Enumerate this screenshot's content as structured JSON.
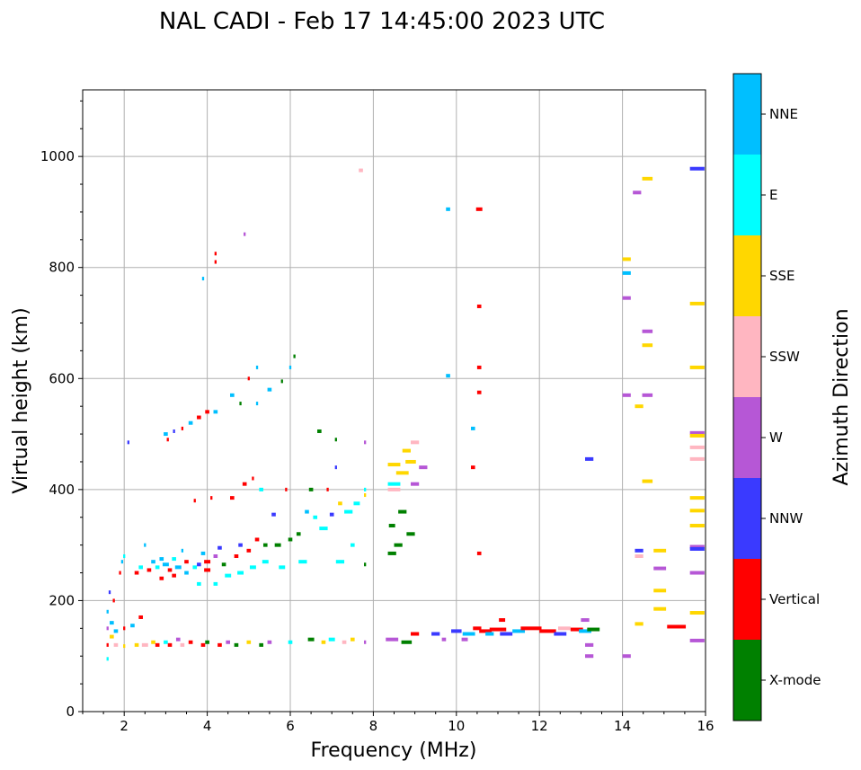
{
  "chart_data": {
    "type": "scatter",
    "title": "NAL CADI - Feb 17 14:45:00 2023 UTC",
    "xlabel": "Frequency (MHz)",
    "ylabel": "Virtual height (km)",
    "xlim": [
      1,
      16
    ],
    "ylim": [
      0,
      1120
    ],
    "xticks": [
      2,
      4,
      6,
      8,
      10,
      12,
      14,
      16
    ],
    "yticks": [
      0,
      200,
      400,
      600,
      800,
      1000
    ],
    "grid": true,
    "colorbar": {
      "label": "Azimuth Direction",
      "categories": [
        "X-mode",
        "Vertical",
        "NNW",
        "W",
        "SSW",
        "SSE",
        "E",
        "NNE"
      ],
      "colors": [
        "#008000",
        "#ff0000",
        "#3a3aff",
        "#b657d6",
        "#ffb6c1",
        "#ffd700",
        "#00ffff",
        "#00bfff"
      ]
    },
    "points_format": "[frequency_MHz, height_km, category_index, width_MHz]",
    "points": [
      [
        1.6,
        95,
        6,
        0.05
      ],
      [
        1.6,
        120,
        1,
        0.05
      ],
      [
        1.6,
        150,
        3,
        0.05
      ],
      [
        1.6,
        180,
        7,
        0.05
      ],
      [
        1.65,
        215,
        2,
        0.05
      ],
      [
        1.7,
        135,
        5,
        0.1
      ],
      [
        1.7,
        160,
        7,
        0.1
      ],
      [
        1.75,
        200,
        1,
        0.05
      ],
      [
        1.8,
        120,
        4,
        0.1
      ],
      [
        1.8,
        145,
        7,
        0.1
      ],
      [
        1.9,
        250,
        1,
        0.05
      ],
      [
        1.95,
        270,
        7,
        0.05
      ],
      [
        2.0,
        118,
        5,
        0.05
      ],
      [
        2.0,
        150,
        1,
        0.05
      ],
      [
        2.0,
        280,
        6,
        0.05
      ],
      [
        2.1,
        485,
        2,
        0.05
      ],
      [
        2.2,
        155,
        7,
        0.1
      ],
      [
        2.3,
        120,
        5,
        0.1
      ],
      [
        2.3,
        250,
        1,
        0.1
      ],
      [
        2.4,
        170,
        1,
        0.1
      ],
      [
        2.4,
        260,
        6,
        0.1
      ],
      [
        2.5,
        120,
        4,
        0.15
      ],
      [
        2.5,
        300,
        7,
        0.05
      ],
      [
        2.6,
        255,
        1,
        0.1
      ],
      [
        2.7,
        125,
        5,
        0.1
      ],
      [
        2.7,
        270,
        7,
        0.1
      ],
      [
        2.8,
        120,
        1,
        0.1
      ],
      [
        2.8,
        260,
        6,
        0.1
      ],
      [
        2.9,
        240,
        1,
        0.1
      ],
      [
        2.9,
        275,
        7,
        0.1
      ],
      [
        3.0,
        125,
        6,
        0.1
      ],
      [
        3.0,
        265,
        7,
        0.15
      ],
      [
        3.0,
        500,
        7,
        0.1
      ],
      [
        3.05,
        490,
        1,
        0.05
      ],
      [
        3.1,
        255,
        1,
        0.1
      ],
      [
        3.1,
        120,
        1,
        0.1
      ],
      [
        3.2,
        275,
        6,
        0.1
      ],
      [
        3.2,
        245,
        1,
        0.1
      ],
      [
        3.2,
        505,
        2,
        0.05
      ],
      [
        3.3,
        130,
        3,
        0.1
      ],
      [
        3.3,
        260,
        7,
        0.15
      ],
      [
        3.4,
        120,
        4,
        0.1
      ],
      [
        3.4,
        290,
        7,
        0.05
      ],
      [
        3.4,
        510,
        1,
        0.05
      ],
      [
        3.5,
        270,
        1,
        0.1
      ],
      [
        3.5,
        250,
        7,
        0.1
      ],
      [
        3.6,
        125,
        1,
        0.1
      ],
      [
        3.6,
        520,
        7,
        0.1
      ],
      [
        3.7,
        260,
        6,
        0.1
      ],
      [
        3.7,
        380,
        1,
        0.05
      ],
      [
        3.8,
        265,
        2,
        0.1
      ],
      [
        3.8,
        230,
        6,
        0.1
      ],
      [
        3.8,
        530,
        1,
        0.1
      ],
      [
        3.9,
        120,
        1,
        0.1
      ],
      [
        3.9,
        285,
        7,
        0.1
      ],
      [
        3.9,
        780,
        7,
        0.05
      ],
      [
        4.0,
        270,
        1,
        0.15
      ],
      [
        4.0,
        255,
        1,
        0.15
      ],
      [
        4.0,
        540,
        1,
        0.1
      ],
      [
        4.0,
        125,
        0,
        0.1
      ],
      [
        4.1,
        385,
        1,
        0.05
      ],
      [
        4.2,
        280,
        3,
        0.1
      ],
      [
        4.2,
        230,
        6,
        0.1
      ],
      [
        4.2,
        540,
        7,
        0.1
      ],
      [
        4.2,
        810,
        1,
        0.05
      ],
      [
        4.2,
        825,
        1,
        0.05
      ],
      [
        4.3,
        120,
        1,
        0.1
      ],
      [
        4.3,
        295,
        2,
        0.1
      ],
      [
        4.4,
        265,
        0,
        0.1
      ],
      [
        4.5,
        125,
        3,
        0.1
      ],
      [
        4.5,
        245,
        6,
        0.15
      ],
      [
        4.6,
        385,
        1,
        0.1
      ],
      [
        4.6,
        570,
        7,
        0.1
      ],
      [
        4.7,
        280,
        1,
        0.1
      ],
      [
        4.7,
        120,
        0,
        0.1
      ],
      [
        4.8,
        300,
        2,
        0.1
      ],
      [
        4.8,
        250,
        6,
        0.15
      ],
      [
        4.8,
        555,
        0,
        0.05
      ],
      [
        4.9,
        410,
        1,
        0.1
      ],
      [
        4.9,
        860,
        3,
        0.05
      ],
      [
        5.0,
        125,
        5,
        0.1
      ],
      [
        5.0,
        290,
        1,
        0.1
      ],
      [
        5.0,
        600,
        1,
        0.05
      ],
      [
        5.1,
        260,
        6,
        0.15
      ],
      [
        5.1,
        420,
        1,
        0.05
      ],
      [
        5.2,
        310,
        1,
        0.1
      ],
      [
        5.2,
        555,
        7,
        0.05
      ],
      [
        5.2,
        620,
        7,
        0.05
      ],
      [
        5.3,
        120,
        0,
        0.1
      ],
      [
        5.3,
        400,
        6,
        0.1
      ],
      [
        5.4,
        300,
        0,
        0.1
      ],
      [
        5.4,
        270,
        6,
        0.15
      ],
      [
        5.5,
        580,
        7,
        0.1
      ],
      [
        5.5,
        125,
        3,
        0.1
      ],
      [
        5.6,
        355,
        2,
        0.1
      ],
      [
        5.7,
        300,
        0,
        0.15
      ],
      [
        5.8,
        260,
        6,
        0.15
      ],
      [
        5.8,
        595,
        0,
        0.05
      ],
      [
        5.9,
        400,
        1,
        0.05
      ],
      [
        6.0,
        620,
        7,
        0.05
      ],
      [
        6.0,
        310,
        0,
        0.1
      ],
      [
        6.0,
        125,
        6,
        0.1
      ],
      [
        6.1,
        640,
        0,
        0.05
      ],
      [
        6.2,
        320,
        0,
        0.1
      ],
      [
        6.3,
        270,
        6,
        0.2
      ],
      [
        6.4,
        360,
        7,
        0.1
      ],
      [
        6.5,
        130,
        0,
        0.15
      ],
      [
        6.5,
        400,
        0,
        0.1
      ],
      [
        6.6,
        350,
        6,
        0.1
      ],
      [
        6.7,
        505,
        0,
        0.1
      ],
      [
        6.8,
        330,
        6,
        0.2
      ],
      [
        6.8,
        125,
        5,
        0.1
      ],
      [
        6.9,
        400,
        1,
        0.05
      ],
      [
        7.0,
        355,
        2,
        0.1
      ],
      [
        7.0,
        130,
        6,
        0.15
      ],
      [
        7.1,
        490,
        0,
        0.05
      ],
      [
        7.1,
        440,
        2,
        0.05
      ],
      [
        7.2,
        270,
        6,
        0.2
      ],
      [
        7.2,
        375,
        5,
        0.1
      ],
      [
        7.3,
        125,
        4,
        0.1
      ],
      [
        7.4,
        360,
        6,
        0.2
      ],
      [
        7.5,
        300,
        6,
        0.1
      ],
      [
        7.5,
        130,
        5,
        0.1
      ],
      [
        7.6,
        375,
        6,
        0.15
      ],
      [
        7.7,
        975,
        4,
        0.1
      ],
      [
        7.8,
        390,
        5,
        0.05
      ],
      [
        7.8,
        400,
        6,
        0.05
      ],
      [
        7.8,
        265,
        0,
        0.05
      ],
      [
        7.8,
        485,
        3,
        0.05
      ],
      [
        7.8,
        125,
        3,
        0.05
      ],
      [
        8.45,
        130,
        3,
        0.3
      ],
      [
        8.45,
        335,
        0,
        0.15
      ],
      [
        8.45,
        285,
        0,
        0.2
      ],
      [
        8.5,
        410,
        6,
        0.3
      ],
      [
        8.5,
        445,
        5,
        0.3
      ],
      [
        8.5,
        400,
        4,
        0.3
      ],
      [
        8.6,
        300,
        0,
        0.2
      ],
      [
        8.7,
        360,
        0,
        0.2
      ],
      [
        8.7,
        430,
        5,
        0.3
      ],
      [
        8.8,
        125,
        0,
        0.25
      ],
      [
        8.8,
        470,
        5,
        0.2
      ],
      [
        8.9,
        450,
        5,
        0.25
      ],
      [
        8.9,
        320,
        0,
        0.2
      ],
      [
        9.0,
        410,
        3,
        0.2
      ],
      [
        9.0,
        140,
        1,
        0.2
      ],
      [
        9.0,
        485,
        4,
        0.2
      ],
      [
        9.2,
        440,
        3,
        0.2
      ],
      [
        9.5,
        140,
        2,
        0.2
      ],
      [
        9.7,
        130,
        3,
        0.1
      ],
      [
        9.8,
        905,
        7,
        0.1
      ],
      [
        9.8,
        605,
        7,
        0.1
      ],
      [
        10.0,
        145,
        2,
        0.25
      ],
      [
        10.2,
        130,
        3,
        0.15
      ],
      [
        10.3,
        140,
        7,
        0.3
      ],
      [
        10.4,
        510,
        7,
        0.1
      ],
      [
        10.4,
        440,
        1,
        0.1
      ],
      [
        10.5,
        150,
        1,
        0.2
      ],
      [
        10.55,
        905,
        1,
        0.15
      ],
      [
        10.55,
        730,
        1,
        0.1
      ],
      [
        10.55,
        620,
        1,
        0.1
      ],
      [
        10.55,
        575,
        1,
        0.1
      ],
      [
        10.55,
        285,
        1,
        0.1
      ],
      [
        10.7,
        145,
        1,
        0.3
      ],
      [
        10.8,
        140,
        7,
        0.2
      ],
      [
        11.0,
        148,
        1,
        0.4
      ],
      [
        11.1,
        165,
        1,
        0.15
      ],
      [
        11.2,
        140,
        2,
        0.3
      ],
      [
        11.5,
        145,
        7,
        0.3
      ],
      [
        11.8,
        150,
        1,
        0.5
      ],
      [
        12.2,
        145,
        1,
        0.4
      ],
      [
        12.5,
        140,
        2,
        0.3
      ],
      [
        12.6,
        150,
        4,
        0.3
      ],
      [
        12.9,
        148,
        1,
        0.3
      ],
      [
        13.1,
        145,
        7,
        0.3
      ],
      [
        13.1,
        165,
        3,
        0.2
      ],
      [
        13.2,
        120,
        3,
        0.2
      ],
      [
        13.2,
        100,
        3,
        0.2
      ],
      [
        13.3,
        148,
        0,
        0.3
      ],
      [
        13.2,
        455,
        2,
        0.2
      ],
      [
        14.1,
        815,
        5,
        0.2
      ],
      [
        14.1,
        790,
        7,
        0.2
      ],
      [
        14.1,
        745,
        3,
        0.2
      ],
      [
        14.1,
        570,
        3,
        0.2
      ],
      [
        14.1,
        100,
        3,
        0.2
      ],
      [
        14.35,
        935,
        3,
        0.2
      ],
      [
        14.4,
        550,
        5,
        0.2
      ],
      [
        14.4,
        290,
        2,
        0.2
      ],
      [
        14.4,
        280,
        4,
        0.2
      ],
      [
        14.4,
        158,
        5,
        0.2
      ],
      [
        14.6,
        960,
        5,
        0.25
      ],
      [
        14.6,
        685,
        3,
        0.25
      ],
      [
        14.6,
        660,
        5,
        0.25
      ],
      [
        14.6,
        570,
        3,
        0.25
      ],
      [
        14.6,
        415,
        5,
        0.25
      ],
      [
        14.9,
        290,
        5,
        0.3
      ],
      [
        14.9,
        258,
        3,
        0.3
      ],
      [
        14.9,
        218,
        5,
        0.3
      ],
      [
        14.9,
        185,
        5,
        0.3
      ],
      [
        15.3,
        153,
        1,
        0.45
      ],
      [
        15.8,
        978,
        2,
        0.35
      ],
      [
        15.8,
        735,
        5,
        0.35
      ],
      [
        15.8,
        620,
        5,
        0.35
      ],
      [
        15.8,
        502,
        3,
        0.35
      ],
      [
        15.8,
        497,
        5,
        0.35
      ],
      [
        15.8,
        476,
        4,
        0.35
      ],
      [
        15.8,
        455,
        4,
        0.35
      ],
      [
        15.8,
        385,
        5,
        0.35
      ],
      [
        15.8,
        362,
        5,
        0.35
      ],
      [
        15.8,
        335,
        5,
        0.35
      ],
      [
        15.8,
        297,
        3,
        0.35
      ],
      [
        15.8,
        293,
        2,
        0.35
      ],
      [
        15.8,
        250,
        3,
        0.35
      ],
      [
        15.8,
        178,
        5,
        0.35
      ],
      [
        15.8,
        128,
        3,
        0.35
      ]
    ]
  }
}
